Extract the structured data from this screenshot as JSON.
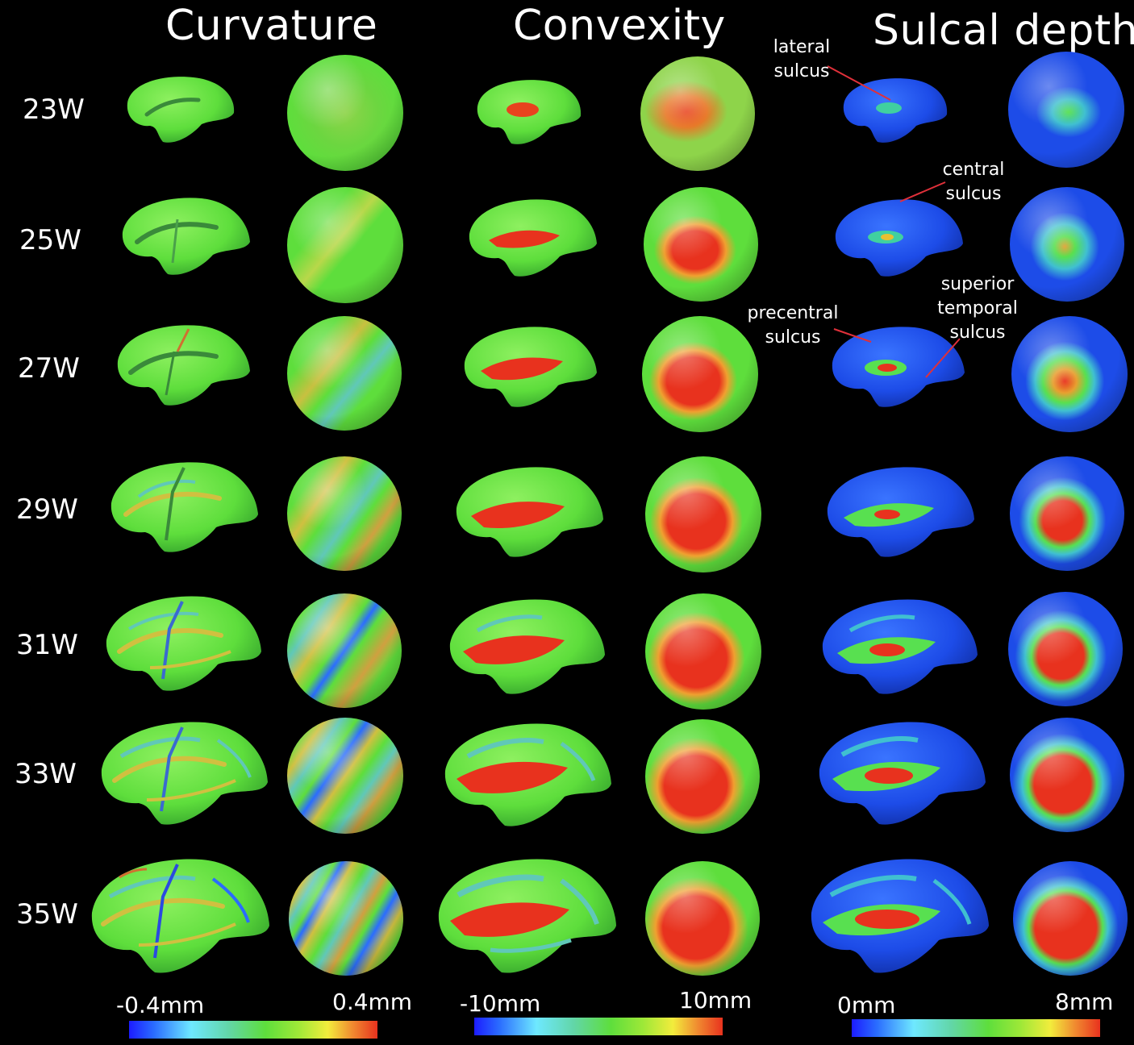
{
  "columns": {
    "curvature": "Curvature",
    "convexity": "Convexity",
    "sulcal_depth": "Sulcal depth"
  },
  "rows": [
    "23W",
    "25W",
    "27W",
    "29W",
    "31W",
    "33W",
    "35W"
  ],
  "annotations": {
    "lateral": "lateral sulcus",
    "central": "central sulcus",
    "precentral": "precentral sulcus",
    "superior_temporal": "superior temporal sulcus"
  },
  "colorbars": {
    "curvature": {
      "min": "-0.4mm",
      "max": "0.4mm"
    },
    "convexity": {
      "min": "-10mm",
      "max": "10mm"
    },
    "sulcal_depth": {
      "min": "0mm",
      "max": "8mm"
    }
  },
  "colors": {
    "background": "#000000",
    "green": "#5ede3c",
    "blue": "#1d4ce8",
    "red": "#e8321e",
    "leader": "#e0303a"
  }
}
